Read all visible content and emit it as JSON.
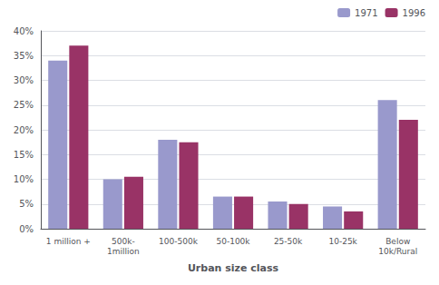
{
  "chart_data": {
    "type": "bar",
    "categories": [
      "1 million +",
      "500k-\n1million",
      "100-500k",
      "50-100k",
      "25-50k",
      "10-25k",
      "Below\n10k/Rural"
    ],
    "series": [
      {
        "name": "1971",
        "color": "#9999cc",
        "values": [
          34,
          10,
          18,
          6.5,
          5.5,
          4.5,
          26
        ]
      },
      {
        "name": "1996",
        "color": "#993366",
        "values": [
          37,
          10.5,
          17.5,
          6.5,
          5,
          3.5,
          22
        ]
      }
    ],
    "xlabel": "Urban size class",
    "ylim": [
      0,
      40
    ],
    "yticks": [
      {
        "value": 0,
        "label": "0%"
      },
      {
        "value": 5,
        "label": "5%"
      },
      {
        "value": 10,
        "label": "10%"
      },
      {
        "value": 15,
        "label": "15%"
      },
      {
        "value": 20,
        "label": "20%"
      },
      {
        "value": 25,
        "label": "25%"
      },
      {
        "value": 30,
        "label": "30%"
      },
      {
        "value": 35,
        "label": "35%"
      },
      {
        "value": 40,
        "label": "40%"
      }
    ],
    "grid": true,
    "legend": "upper right"
  }
}
